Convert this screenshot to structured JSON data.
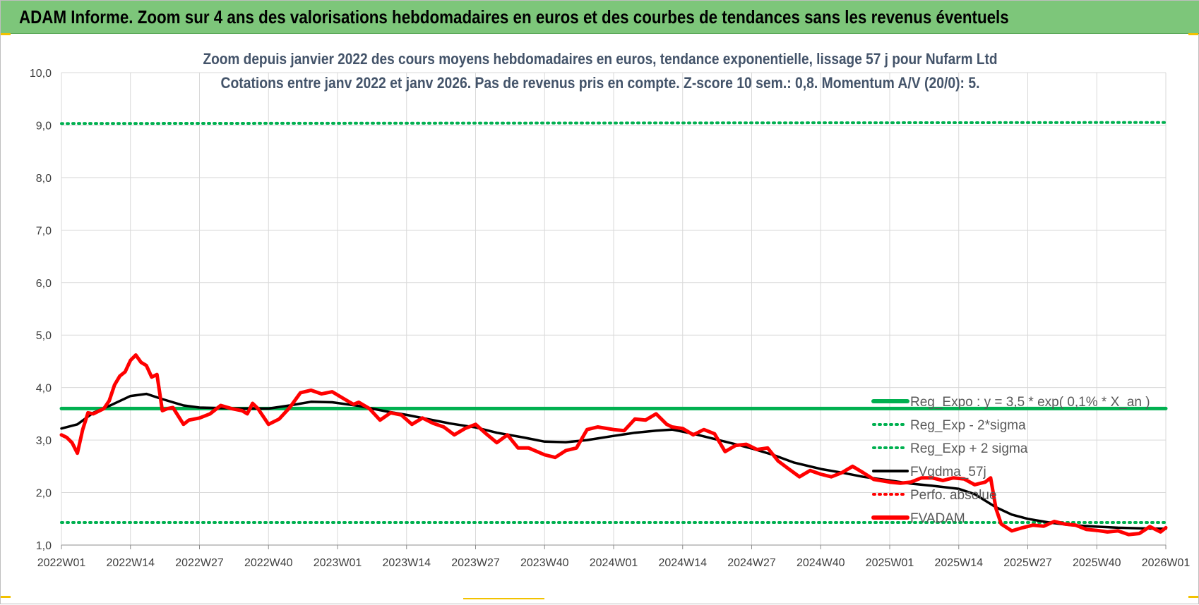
{
  "header": {
    "title": "ADAM Informe. Zoom sur 4 ans des valorisations hebdomadaires en euros et des courbes de tendances sans les revenus éventuels"
  },
  "colors": {
    "banner": "#7dc67a",
    "reg_expo": "#00b050",
    "sigma_bands": "#00b050",
    "fvgdma": "#000000",
    "perfo": "#ff0000",
    "fvadam": "#ff0000",
    "grid": "#d9d9d9",
    "title_text": "#44546a"
  },
  "chart_data": {
    "type": "line",
    "title_line1": "Zoom depuis janvier 2022 des cours moyens hebdomadaires en euros, tendance exponentielle, lissage 57 j pour Nufarm Ltd",
    "title_line2": "Cotations entre janv 2022 et janv 2026. Pas de revenus pris en compte. Z-score 10 sem.: 0,8. Momentum A/V (20/0): 5.",
    "xlabel": "",
    "ylabel": "",
    "ylim": [
      1.0,
      10.0
    ],
    "ytick_labels": [
      "1,0",
      "2,0",
      "3,0",
      "4,0",
      "5,0",
      "6,0",
      "7,0",
      "8,0",
      "9,0",
      "10,0"
    ],
    "xtick_labels": [
      "2022W01",
      "2022W14",
      "2022W27",
      "2022W40",
      "2023W01",
      "2023W14",
      "2023W27",
      "2023W40",
      "2024W01",
      "2024W14",
      "2024W27",
      "2024W40",
      "2025W01",
      "2025W14",
      "2025W27",
      "2025W40",
      "2026W01"
    ],
    "grid": true,
    "legend_position": "bottom-right",
    "legend": [
      {
        "name": "Reg_Expo : y = 3,5 * exp( 0,1% * X_an )",
        "style": "solid-green-thick"
      },
      {
        "name": "Reg_Exp - 2*sigma",
        "style": "dotted-green"
      },
      {
        "name": "Reg_Exp + 2 sigma",
        "style": "dotted-green"
      },
      {
        "name": "FVgdma_57j",
        "style": "solid-black"
      },
      {
        "name": "Perfo. absolue",
        "style": "dotted-red"
      },
      {
        "name": "FVADAM",
        "style": "solid-red-thick"
      }
    ],
    "series": [
      {
        "name": "Reg_Expo : y = 3,5 * exp( 0,1% * X_an )",
        "x": [
          "2022W01",
          "2026W01"
        ],
        "values": [
          3.6,
          3.6
        ]
      },
      {
        "name": "Reg_Exp - 2*sigma",
        "x": [
          "2022W01",
          "2026W01"
        ],
        "values": [
          1.43,
          1.43
        ]
      },
      {
        "name": "Reg_Exp + 2 sigma",
        "x": [
          "2022W01",
          "2026W01"
        ],
        "values": [
          9.03,
          9.05
        ]
      },
      {
        "name": "FVgdma_57j",
        "x": [
          "2022W01",
          "2022W04",
          "2022W07",
          "2022W10",
          "2022W14",
          "2022W17",
          "2022W20",
          "2022W24",
          "2022W27",
          "2022W31",
          "2022W35",
          "2022W40",
          "2022W44",
          "2022W48",
          "2022W52",
          "2023W05",
          "2023W10",
          "2023W14",
          "2023W18",
          "2023W22",
          "2023W27",
          "2023W31",
          "2023W36",
          "2023W40",
          "2023W44",
          "2023W48",
          "2024W01",
          "2024W05",
          "2024W09",
          "2024W12",
          "2024W16",
          "2024W20",
          "2024W24",
          "2024W27",
          "2024W31",
          "2024W35",
          "2024W40",
          "2024W44",
          "2024W48",
          "2025W01",
          "2025W05",
          "2025W09",
          "2025W14",
          "2025W17",
          "2025W21",
          "2025W24",
          "2025W27",
          "2025W31",
          "2025W35",
          "2025W40",
          "2025W44",
          "2025W48",
          "2026W01"
        ],
        "values": [
          3.22,
          3.3,
          3.52,
          3.65,
          3.84,
          3.88,
          3.78,
          3.66,
          3.62,
          3.61,
          3.6,
          3.6,
          3.66,
          3.73,
          3.72,
          3.65,
          3.55,
          3.48,
          3.4,
          3.32,
          3.24,
          3.14,
          3.05,
          2.97,
          2.96,
          3.0,
          3.08,
          3.14,
          3.18,
          3.2,
          3.12,
          3.02,
          2.92,
          2.84,
          2.72,
          2.57,
          2.45,
          2.38,
          2.3,
          2.23,
          2.17,
          2.13,
          2.07,
          1.97,
          1.72,
          1.58,
          1.5,
          1.43,
          1.38,
          1.35,
          1.33,
          1.32,
          1.31
        ]
      },
      {
        "name": "FVADAM",
        "x": [
          "2022W01",
          "2022W02",
          "2022W03",
          "2022W04",
          "2022W05",
          "2022W06",
          "2022W07",
          "2022W09",
          "2022W10",
          "2022W11",
          "2022W12",
          "2022W13",
          "2022W14",
          "2022W15",
          "2022W16",
          "2022W17",
          "2022W18",
          "2022W19",
          "2022W20",
          "2022W21",
          "2022W22",
          "2022W24",
          "2022W25",
          "2022W27",
          "2022W29",
          "2022W31",
          "2022W33",
          "2022W35",
          "2022W36",
          "2022W37",
          "2022W38",
          "2022W40",
          "2022W42",
          "2022W44",
          "2022W46",
          "2022W48",
          "2022W50",
          "2022W52",
          "2023W02",
          "2023W04",
          "2023W05",
          "2023W07",
          "2023W09",
          "2023W11",
          "2023W13",
          "2023W15",
          "2023W17",
          "2023W19",
          "2023W21",
          "2023W23",
          "2023W25",
          "2023W27",
          "2023W29",
          "2023W31",
          "2023W33",
          "2023W35",
          "2023W37",
          "2023W40",
          "2023W42",
          "2023W44",
          "2023W46",
          "2023W48",
          "2023W50",
          "2024W01",
          "2024W03",
          "2024W05",
          "2024W07",
          "2024W09",
          "2024W11",
          "2024W12",
          "2024W14",
          "2024W16",
          "2024W18",
          "2024W20",
          "2024W22",
          "2024W24",
          "2024W26",
          "2024W28",
          "2024W30",
          "2024W32",
          "2024W34",
          "2024W36",
          "2024W38",
          "2024W40",
          "2024W42",
          "2024W44",
          "2024W46",
          "2024W48",
          "2024W50",
          "2025W01",
          "2025W03",
          "2025W05",
          "2025W07",
          "2025W09",
          "2025W11",
          "2025W13",
          "2025W15",
          "2025W17",
          "2025W19",
          "2025W20",
          "2025W21",
          "2025W22",
          "2025W24",
          "2025W26",
          "2025W28",
          "2025W30",
          "2025W32",
          "2025W34",
          "2025W36",
          "2025W38",
          "2025W40",
          "2025W42",
          "2025W44",
          "2025W46",
          "2025W48",
          "2025W50",
          "2025W52",
          "2026W01"
        ],
        "values": [
          3.1,
          3.05,
          2.95,
          2.75,
          3.2,
          3.52,
          3.5,
          3.6,
          3.75,
          4.05,
          4.22,
          4.3,
          4.52,
          4.62,
          4.48,
          4.42,
          4.2,
          4.25,
          3.56,
          3.6,
          3.62,
          3.3,
          3.38,
          3.42,
          3.5,
          3.66,
          3.6,
          3.56,
          3.5,
          3.7,
          3.6,
          3.3,
          3.4,
          3.62,
          3.9,
          3.95,
          3.88,
          3.92,
          3.8,
          3.68,
          3.72,
          3.6,
          3.38,
          3.52,
          3.48,
          3.3,
          3.42,
          3.32,
          3.25,
          3.1,
          3.22,
          3.3,
          3.12,
          2.95,
          3.1,
          2.85,
          2.85,
          2.72,
          2.67,
          2.8,
          2.85,
          3.2,
          3.25,
          3.2,
          3.18,
          3.4,
          3.38,
          3.5,
          3.3,
          3.25,
          3.22,
          3.1,
          3.2,
          3.12,
          2.78,
          2.9,
          2.92,
          2.82,
          2.85,
          2.6,
          2.45,
          2.3,
          2.42,
          2.35,
          2.3,
          2.38,
          2.5,
          2.38,
          2.25,
          2.2,
          2.18,
          2.2,
          2.28,
          2.28,
          2.23,
          2.28,
          2.26,
          2.15,
          2.2,
          2.28,
          1.7,
          1.4,
          1.27,
          1.33,
          1.38,
          1.36,
          1.45,
          1.4,
          1.38,
          1.3,
          1.28,
          1.25,
          1.27,
          1.2,
          1.22,
          1.35,
          1.25,
          1.33
        ]
      },
      {
        "name": "Perfo. absolue",
        "x": [],
        "values": []
      }
    ]
  }
}
